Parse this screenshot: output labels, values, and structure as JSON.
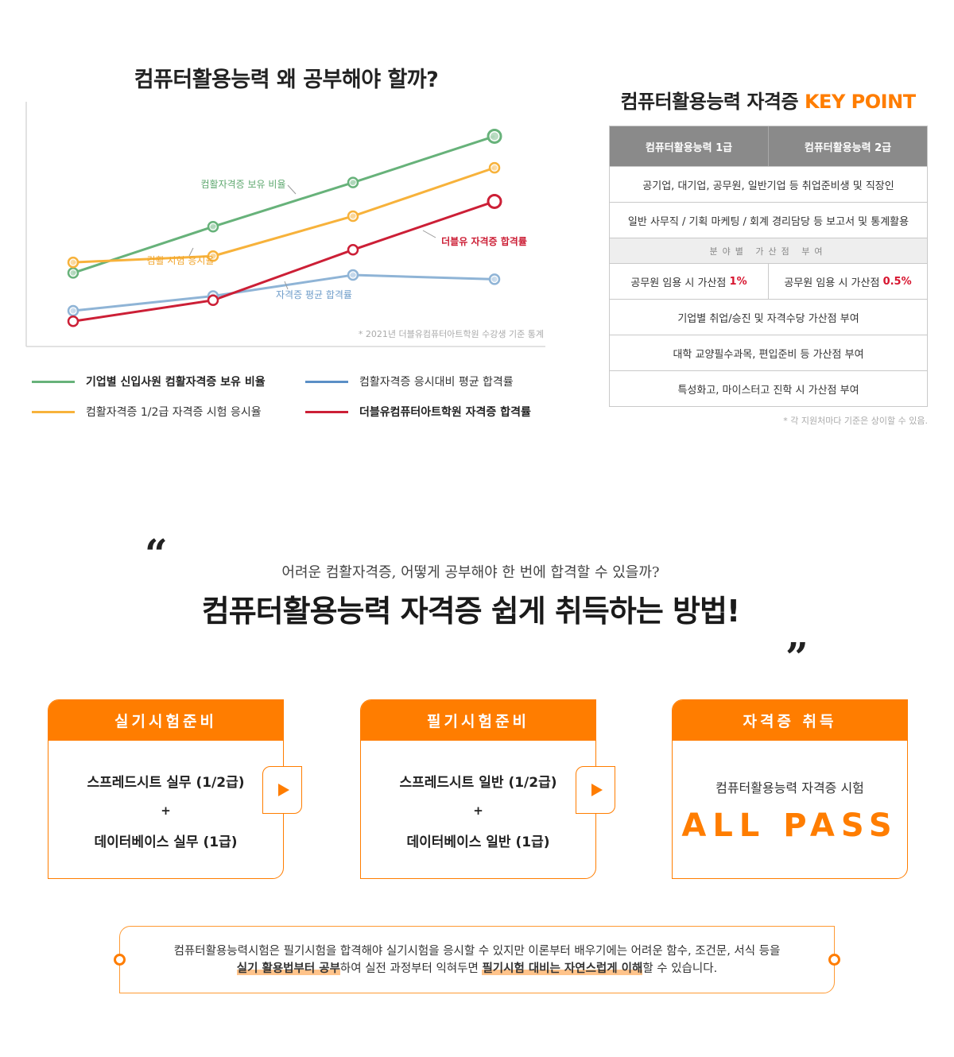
{
  "chart": {
    "title": "컴퓨터활용능력 왜 공부해야 할까?",
    "note": "* 2021년 더블유컴퓨터아트학원 수강생 기준 통계",
    "labels": {
      "green": "컴활자격증 보유 비율",
      "orange": "컴활 시험 응시율",
      "blue": "자격증 평균 합격률",
      "red": "더블유 자격증 합격률"
    },
    "legend": [
      {
        "label": "기업별 신입사원 컴활자격증 보유 비율",
        "color": "#67b27a",
        "bold": true
      },
      {
        "label": "컴활자격증 응시대비 평균 합격률",
        "color": "#5b8fc6",
        "bold": false
      },
      {
        "label": "컴활자격증 1/2급 자격증 시험 응시율",
        "color": "#f7b23b",
        "bold": false
      },
      {
        "label": "더블유컴퓨터아트학원 자격증 합격률",
        "color": "#cc1f36",
        "bold": true
      }
    ]
  },
  "chart_data": {
    "type": "line",
    "x": [
      1,
      2,
      3,
      4
    ],
    "series": [
      {
        "key": "green",
        "color": "#67b27a",
        "values": [
          0.35,
          0.57,
          0.78,
          1.0
        ]
      },
      {
        "key": "orange",
        "color": "#f7b23b",
        "values": [
          0.4,
          0.43,
          0.62,
          0.85
        ]
      },
      {
        "key": "blue",
        "color": "#8fb4d6",
        "values": [
          0.17,
          0.24,
          0.34,
          0.32
        ]
      },
      {
        "key": "red",
        "color": "#cc1f36",
        "values": [
          0.12,
          0.22,
          0.46,
          0.69
        ]
      }
    ],
    "ylim": [
      0,
      1.1
    ],
    "grid": false,
    "legend": "bottom"
  },
  "keypoint": {
    "title": "컴퓨터활용능력 자격증",
    "title_accent": "KEY POINT",
    "head1": "컴퓨터활용능력 1급",
    "head2": "컴퓨터활용능력 2급",
    "row1": "공기업, 대기업, 공무원, 일반기업 등 취업준비생 및 직장인",
    "row2": "일반 사무직 / 기획 마케팅 / 회계 경리담당 등 보고서 및 통계활용",
    "sub": "분야별 가산점 부여",
    "pts1_text": "공무원 임용 시 가산점",
    "pts1_val": "1%",
    "pts2_text": "공무원 임용 시 가산점",
    "pts2_val": "0.5%",
    "row4": "기업별 취업/승진 및 자격수당 가산점 부여",
    "row5": "대학 교양필수과목, 편입준비 등 가산점 부여",
    "row6": "특성화고, 마이스터고 진학 시 가산점 부여",
    "note": "* 각 지원처마다 기준은 상이할 수 있음."
  },
  "method": {
    "quote_open": "“",
    "quote_close": "”",
    "sub": "어려운 컴활자격증, 어떻게 공부해야 한 번에 합격할 수 있을까?",
    "title": "컴퓨터활용능력 자격증 쉽게 취득하는 방법!",
    "card1": {
      "head": "실기시험준비",
      "line1": "스프레드시트 실무 (1/2급)",
      "plus": "+",
      "line2": "데이터베이스 실무 (1급)"
    },
    "card2": {
      "head": "필기시험준비",
      "line1": "스프레드시트 일반 (1/2급)",
      "plus": "+",
      "line2": "데이터베이스 일반 (1급)"
    },
    "card3": {
      "head": "자격증 취득",
      "sub": "컴퓨터활용능력 자격증 시험",
      "pass": "ALL PASS"
    }
  },
  "info": {
    "line1": "컴퓨터활용능력시험은 필기시험을 합격해야 실기시험을 응시할 수 있지만 이론부터 배우기에는 어려운 함수, 조건문, 서식 등을",
    "hl1": "실기 활용법부터 공부",
    "mid": "하여 실전 과정부터 익혀두면 ",
    "hl2": "필기시험 대비는 자연스럽게 이해",
    "end": "할 수 있습니다."
  }
}
